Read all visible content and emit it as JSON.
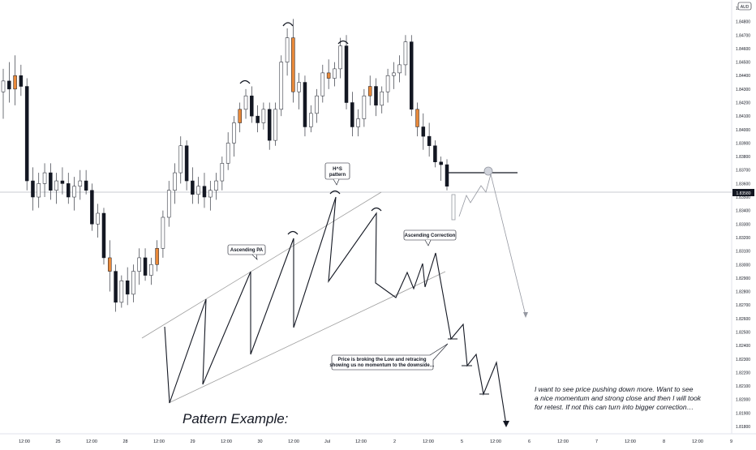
{
  "symbol_badge": "AUD",
  "current_price": "1.83580",
  "price_axis": [
    "1.84900",
    "1.84800",
    "1.84700",
    "1.84600",
    "1.84500",
    "1.84400",
    "1.84300",
    "1.84200",
    "1.84100",
    "1.84000",
    "1.83900",
    "1.83800",
    "1.83700",
    "1.83600",
    "1.83500",
    "1.83400",
    "1.83300",
    "1.83200",
    "1.83100",
    "1.83000",
    "1.82900",
    "1.82800",
    "1.82700",
    "1.82600",
    "1.82500",
    "1.82400",
    "1.82300",
    "1.82200",
    "1.82100",
    "1.82000",
    "1.81900",
    "1.81800"
  ],
  "time_axis": [
    "12:00",
    "25",
    "12:00",
    "28",
    "12:00",
    "29",
    "12:00",
    "30",
    "12:00",
    "Jul",
    "12:00",
    "2",
    "12:00",
    "5",
    "12:00",
    "6",
    "12:00",
    "7",
    "12:00",
    "8",
    "12:00",
    "9"
  ],
  "annotations": {
    "ascending_pa": "Ascending PA",
    "hs_line1": "H^S",
    "hs_line2": "pattern",
    "ascending_correction": "Ascending Correction",
    "broking_line1": "Price is broking the Low and retracing",
    "broking_line2": "showing us no momentum to the downside…",
    "pattern_example": "Pattern Example:",
    "note_line1": "I want to see price pushing down more. Want to see",
    "note_line2": "a nice momentum and strong close and then I will took",
    "note_line3": "for retest. If not this can turn into bigger correction…"
  },
  "colors": {
    "candle": "#131722",
    "candle_highlight": "#e8893a",
    "price_line": "#9598a1",
    "badge_bg": "#131722",
    "callout_border": "#131722",
    "channel": "#9e9e9e"
  },
  "chart_data": {
    "type": "candlestick",
    "title": "",
    "ylim": [
      1.8175,
      1.8495
    ],
    "last_price": 1.8358,
    "candles": [
      [
        1.8428,
        1.8445,
        1.8408,
        1.8436
      ],
      [
        1.8436,
        1.845,
        1.842,
        1.843
      ],
      [
        1.843,
        1.8455,
        1.8418,
        1.844
      ],
      [
        1.844,
        1.8448,
        1.8425,
        1.8432
      ],
      [
        1.8432,
        1.8438,
        1.8355,
        1.8362
      ],
      [
        1.8362,
        1.8372,
        1.834,
        1.835
      ],
      [
        1.835,
        1.8368,
        1.8342,
        1.836
      ],
      [
        1.836,
        1.8375,
        1.835,
        1.8368
      ],
      [
        1.8368,
        1.8375,
        1.8348,
        1.8355
      ],
      [
        1.8355,
        1.8368,
        1.8345,
        1.8362
      ],
      [
        1.8362,
        1.8372,
        1.8352,
        1.836
      ],
      [
        1.836,
        1.8368,
        1.8345,
        1.835
      ],
      [
        1.835,
        1.8365,
        1.834,
        1.8358
      ],
      [
        1.8358,
        1.837,
        1.8348,
        1.8362
      ],
      [
        1.8362,
        1.837,
        1.8352,
        1.8355
      ],
      [
        1.8355,
        1.836,
        1.8325,
        1.833
      ],
      [
        1.833,
        1.8345,
        1.832,
        1.8338
      ],
      [
        1.8338,
        1.8342,
        1.83,
        1.8305
      ],
      [
        1.8305,
        1.8318,
        1.828,
        1.8295
      ],
      [
        1.8295,
        1.83,
        1.8265,
        1.8272
      ],
      [
        1.8272,
        1.8292,
        1.8268,
        1.8288
      ],
      [
        1.8288,
        1.8298,
        1.827,
        1.8278
      ],
      [
        1.8278,
        1.83,
        1.8272,
        1.8295
      ],
      [
        1.8295,
        1.8312,
        1.8285,
        1.8305
      ],
      [
        1.8305,
        1.8312,
        1.8288,
        1.8292
      ],
      [
        1.8292,
        1.8305,
        1.8285,
        1.83
      ],
      [
        1.83,
        1.8318,
        1.8295,
        1.8312
      ],
      [
        1.8312,
        1.834,
        1.8305,
        1.8335
      ],
      [
        1.8335,
        1.8362,
        1.8328,
        1.8355
      ],
      [
        1.8355,
        1.8375,
        1.8345,
        1.8368
      ],
      [
        1.8368,
        1.8395,
        1.836,
        1.8388
      ],
      [
        1.8388,
        1.8392,
        1.8355,
        1.8362
      ],
      [
        1.8362,
        1.8372,
        1.8345,
        1.8352
      ],
      [
        1.8352,
        1.8365,
        1.8345,
        1.8358
      ],
      [
        1.8358,
        1.8368,
        1.8342,
        1.835
      ],
      [
        1.835,
        1.8362,
        1.834,
        1.8355
      ],
      [
        1.8355,
        1.8368,
        1.8348,
        1.8362
      ],
      [
        1.8362,
        1.838,
        1.8355,
        1.8375
      ],
      [
        1.8375,
        1.8398,
        1.837,
        1.839
      ],
      [
        1.839,
        1.841,
        1.838,
        1.8405
      ],
      [
        1.8405,
        1.842,
        1.8398,
        1.8415
      ],
      [
        1.8415,
        1.843,
        1.8408,
        1.8425
      ],
      [
        1.8425,
        1.8432,
        1.8405,
        1.841
      ],
      [
        1.841,
        1.8418,
        1.8398,
        1.8405
      ],
      [
        1.8405,
        1.842,
        1.84,
        1.8415
      ],
      [
        1.8415,
        1.842,
        1.8385,
        1.8392
      ],
      [
        1.8392,
        1.842,
        1.8388,
        1.8415
      ],
      [
        1.8415,
        1.8455,
        1.841,
        1.845
      ],
      [
        1.845,
        1.8475,
        1.844,
        1.8468
      ],
      [
        1.8468,
        1.8482,
        1.842,
        1.8428
      ],
      [
        1.8428,
        1.8442,
        1.8415,
        1.8435
      ],
      [
        1.8435,
        1.844,
        1.8395,
        1.8402
      ],
      [
        1.8402,
        1.8418,
        1.8398,
        1.8412
      ],
      [
        1.8412,
        1.843,
        1.8405,
        1.8425
      ],
      [
        1.8425,
        1.8448,
        1.842,
        1.8442
      ],
      [
        1.8442,
        1.8452,
        1.843,
        1.8438
      ],
      [
        1.8438,
        1.845,
        1.8432,
        1.8445
      ],
      [
        1.8445,
        1.8468,
        1.8438,
        1.8462
      ],
      [
        1.8462,
        1.847,
        1.8415,
        1.842
      ],
      [
        1.842,
        1.8428,
        1.8395,
        1.8402
      ],
      [
        1.8402,
        1.8415,
        1.8395,
        1.8408
      ],
      [
        1.8408,
        1.843,
        1.8402,
        1.8425
      ],
      [
        1.8425,
        1.844,
        1.8418,
        1.8432
      ],
      [
        1.8432,
        1.8438,
        1.841,
        1.8418
      ],
      [
        1.8418,
        1.8432,
        1.8412,
        1.8428
      ],
      [
        1.8428,
        1.8445,
        1.842,
        1.844
      ],
      [
        1.844,
        1.845,
        1.843,
        1.8442
      ],
      [
        1.8442,
        1.8455,
        1.8435,
        1.8448
      ],
      [
        1.8448,
        1.847,
        1.844,
        1.8465
      ],
      [
        1.8465,
        1.847,
        1.841,
        1.8415
      ],
      [
        1.8415,
        1.842,
        1.8395,
        1.8402
      ],
      [
        1.8402,
        1.8412,
        1.8385,
        1.8395
      ],
      [
        1.8395,
        1.8405,
        1.838,
        1.8388
      ],
      [
        1.8388,
        1.8392,
        1.8372,
        1.8376
      ],
      [
        1.8376,
        1.838,
        1.8362,
        1.8374
      ],
      [
        1.8374,
        1.8378,
        1.8355,
        1.8358
      ]
    ],
    "highlighted_candles": [
      2,
      18,
      26,
      40,
      49,
      55,
      62,
      70
    ],
    "annotations": [
      "Ascending PA",
      "H^S pattern",
      "Ascending Correction",
      "Price is broking the Low and retracing showing us no momentum to the downside…",
      "Pattern Example:"
    ]
  }
}
